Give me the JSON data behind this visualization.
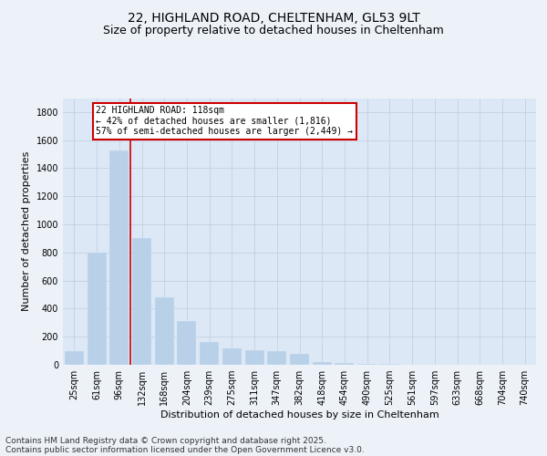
{
  "title_line1": "22, HIGHLAND ROAD, CHELTENHAM, GL53 9LT",
  "title_line2": "Size of property relative to detached houses in Cheltenham",
  "xlabel": "Distribution of detached houses by size in Cheltenham",
  "ylabel": "Number of detached properties",
  "categories": [
    "25sqm",
    "61sqm",
    "96sqm",
    "132sqm",
    "168sqm",
    "204sqm",
    "239sqm",
    "275sqm",
    "311sqm",
    "347sqm",
    "382sqm",
    "418sqm",
    "454sqm",
    "490sqm",
    "525sqm",
    "561sqm",
    "597sqm",
    "633sqm",
    "668sqm",
    "704sqm",
    "740sqm"
  ],
  "values": [
    100,
    800,
    1525,
    900,
    480,
    310,
    160,
    120,
    105,
    95,
    80,
    20,
    10,
    8,
    5,
    3,
    2,
    1,
    1,
    1,
    1
  ],
  "bar_color": "#b8d0e8",
  "vline_x_index": 2,
  "annotation_text": "22 HIGHLAND ROAD: 118sqm\n← 42% of detached houses are smaller (1,816)\n57% of semi-detached houses are larger (2,449) →",
  "annotation_box_facecolor": "#ffffff",
  "annotation_box_edgecolor": "#cc0000",
  "vline_color": "#cc0000",
  "ylim": [
    0,
    1900
  ],
  "yticks": [
    0,
    200,
    400,
    600,
    800,
    1000,
    1200,
    1400,
    1600,
    1800
  ],
  "footnote_line1": "Contains HM Land Registry data © Crown copyright and database right 2025.",
  "footnote_line2": "Contains public sector information licensed under the Open Government Licence v3.0.",
  "bg_color": "#edf2f9",
  "plot_bg_color": "#dce8f5",
  "title_fontsize": 10,
  "subtitle_fontsize": 9,
  "label_fontsize": 8,
  "tick_fontsize": 7,
  "footnote_fontsize": 6.5
}
